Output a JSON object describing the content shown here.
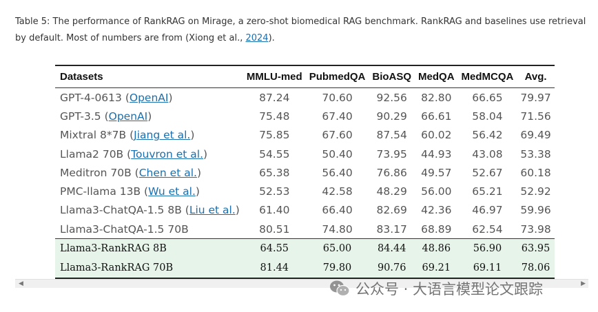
{
  "caption": {
    "text_before": "Table 5: The performance of RankRAG on Mirage, a zero-shot biomedical RAG benchmark. RankRAG and baselines use retrieval by default. Most of numbers are from (Xiong et al., ",
    "link": "2024",
    "text_after": ")."
  },
  "table": {
    "headers": [
      "Datasets",
      "MMLU-med",
      "PubmedQA",
      "BioASQ",
      "MedQA",
      "MedMCQA",
      "Avg."
    ],
    "rows": [
      {
        "name": "GPT-4-0613 (",
        "ref": "OpenAI",
        "suffix": ")",
        "values": [
          "87.24",
          "70.60",
          "92.56",
          "82.80",
          "66.65",
          "79.97"
        ]
      },
      {
        "name": "GPT-3.5 (",
        "ref": "OpenAI",
        "suffix": ")",
        "values": [
          "75.48",
          "67.40",
          "90.29",
          "66.61",
          "58.04",
          "71.56"
        ]
      },
      {
        "name": "Mixtral 8*7B (",
        "ref": "Jiang et al.",
        "suffix": ")",
        "values": [
          "75.85",
          "67.60",
          "87.54",
          "60.02",
          "56.42",
          "69.49"
        ]
      },
      {
        "name": "Llama2 70B (",
        "ref": "Touvron et al.",
        "suffix": ")",
        "values": [
          "54.55",
          "50.40",
          "73.95",
          "44.93",
          "43.08",
          "53.38"
        ]
      },
      {
        "name": "Meditron 70B (",
        "ref": "Chen et al.",
        "suffix": ")",
        "values": [
          "65.38",
          "56.40",
          "76.86",
          "49.57",
          "52.67",
          "60.18"
        ]
      },
      {
        "name": "PMC-llama 13B (",
        "ref": "Wu et al.",
        "suffix": ")",
        "values": [
          "52.53",
          "42.58",
          "48.29",
          "56.00",
          "65.21",
          "52.92"
        ]
      },
      {
        "name": "Llama3-ChatQA-1.5 8B (",
        "ref": "Liu et al.",
        "suffix": ")",
        "values": [
          "61.40",
          "66.40",
          "82.69",
          "42.36",
          "46.97",
          "59.96"
        ]
      },
      {
        "name": "Llama3-ChatQA-1.5 70B",
        "ref": "",
        "suffix": "",
        "values": [
          "80.51",
          "74.80",
          "83.17",
          "68.89",
          "62.54",
          "73.98"
        ]
      }
    ],
    "ours": [
      {
        "name": "Llama3-RankRAG 8B",
        "values": [
          "64.55",
          "65.00",
          "84.44",
          "48.86",
          "56.90",
          "63.95"
        ]
      },
      {
        "name": "Llama3-RankRAG 70B",
        "values": [
          "81.44",
          "79.80",
          "90.76",
          "69.21",
          "69.11",
          "78.06"
        ]
      }
    ],
    "highlight_color": "#e6f4ea"
  },
  "watermark": {
    "text": "公众号 · 大语言模型论文跟踪",
    "icon": "wechat-icon"
  },
  "scrollbar": {
    "left_arrow": "◀",
    "right_arrow": "▶"
  }
}
